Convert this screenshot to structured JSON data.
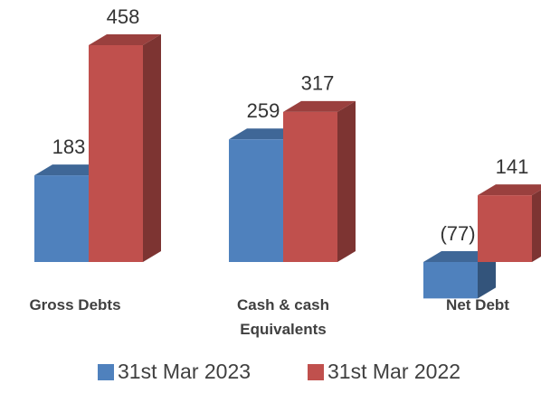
{
  "chart_data": {
    "type": "bar3d",
    "categories": [
      "Gross Debts",
      "Cash & cash Equivalents",
      "Net Debt"
    ],
    "series": [
      {
        "name": "31st Mar 2023",
        "color": "#4f81bd",
        "values": [
          183,
          259,
          -77
        ],
        "value_labels": [
          "183",
          "259",
          "(77)"
        ]
      },
      {
        "name": "31st Mar 2022",
        "color": "#c0504d",
        "values": [
          458,
          317,
          141
        ]
      }
    ]
  }
}
